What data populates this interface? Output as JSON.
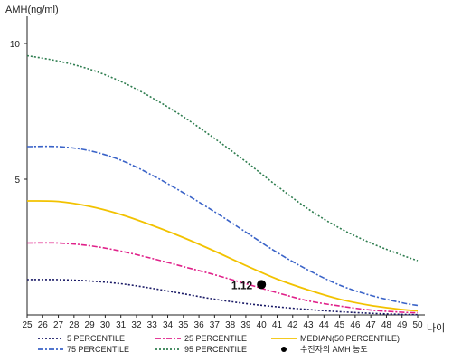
{
  "chart_data": {
    "type": "line",
    "ylabel": "AMH(ng/ml)",
    "xlabel": "나이",
    "xlim": [
      25,
      50
    ],
    "ylim": [
      0,
      11
    ],
    "x_ticks": [
      "25",
      "26",
      "27",
      "28",
      "29",
      "30",
      "31",
      "32",
      "33",
      "34",
      "35",
      "36",
      "37",
      "38",
      "39",
      "40",
      "41",
      "42",
      "43",
      "44",
      "45",
      "46",
      "47",
      "48",
      "49",
      "50"
    ],
    "y_ticks": [
      {
        "value": 5,
        "label": "5"
      },
      {
        "value": 10,
        "label": "10"
      }
    ],
    "grid": false,
    "legend_position": "bottom",
    "x": [
      25,
      27,
      29,
      31,
      33,
      35,
      37,
      39,
      41,
      43,
      45,
      47,
      49,
      50
    ],
    "series": [
      {
        "name": "5 PERCENTILE",
        "style": "dotted",
        "color": "#1a1a66",
        "values": [
          1.3,
          1.3,
          1.25,
          1.15,
          0.98,
          0.78,
          0.58,
          0.42,
          0.3,
          0.2,
          0.12,
          0.06,
          0.02,
          0.01
        ]
      },
      {
        "name": "25 PERCENTILE",
        "style": "dashdot",
        "color": "#e0218a",
        "values": [
          2.65,
          2.65,
          2.55,
          2.35,
          2.08,
          1.78,
          1.48,
          1.15,
          0.82,
          0.52,
          0.33,
          0.18,
          0.1,
          0.08
        ]
      },
      {
        "name": "MEDIAN(50 PERCENTILE)",
        "style": "solid",
        "color": "#f2c200",
        "values": [
          4.2,
          4.18,
          4.0,
          3.7,
          3.3,
          2.85,
          2.35,
          1.82,
          1.32,
          0.92,
          0.58,
          0.35,
          0.2,
          0.15
        ]
      },
      {
        "name": "75 PERCENTILE",
        "style": "dashdot",
        "color": "#3a63c8",
        "values": [
          6.2,
          6.2,
          6.05,
          5.7,
          5.15,
          4.5,
          3.8,
          3.05,
          2.3,
          1.65,
          1.1,
          0.72,
          0.45,
          0.35
        ]
      },
      {
        "name": "95 PERCENTILE",
        "style": "dotted",
        "color": "#2e7d4f",
        "values": [
          9.55,
          9.35,
          9.05,
          8.6,
          8.0,
          7.3,
          6.5,
          5.65,
          4.75,
          3.9,
          3.2,
          2.65,
          2.2,
          2.0
        ]
      }
    ],
    "legend_order": [
      "5 PERCENTILE",
      "25 PERCENTILE",
      "MEDIAN(50 PERCENTILE)",
      "75 PERCENTILE",
      "95 PERCENTILE"
    ],
    "patient_point": {
      "name": "수진자의 AMH 농도",
      "x": 40,
      "y": 1.12,
      "label": "1.12",
      "color": "#000000"
    }
  }
}
